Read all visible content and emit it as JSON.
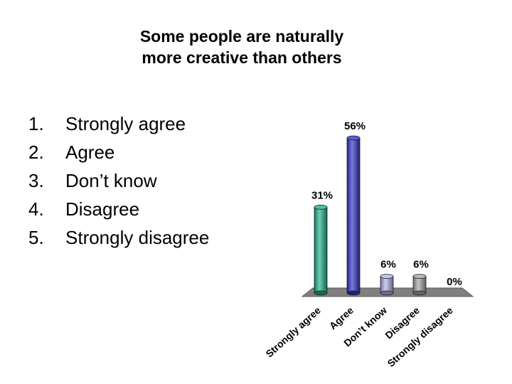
{
  "title": {
    "line1": "Some people are naturally",
    "line2": "more creative than others"
  },
  "options": [
    {
      "num": "1.",
      "text": "Strongly agree"
    },
    {
      "num": "2.",
      "text": "Agree"
    },
    {
      "num": "3.",
      "text": "Don’t know"
    },
    {
      "num": "4.",
      "text": "Disagree"
    },
    {
      "num": "5.",
      "text": "Strongly disagree"
    }
  ],
  "chart_data": {
    "type": "bar",
    "style": "3d-cylinder",
    "categories": [
      "Strongly agree",
      "Agree",
      "Don’t know",
      "Disagree",
      "Strongly disagree"
    ],
    "values": [
      31,
      56,
      6,
      6,
      0
    ],
    "data_labels": [
      "31%",
      "56%",
      "6%",
      "6%",
      "0%"
    ],
    "colors": [
      "#1fb58a",
      "#3333cc",
      "#b4b4ee",
      "#a6a6a6",
      "#8a8a8a"
    ],
    "floor_color": "#808080",
    "ylim": [
      0,
      56
    ],
    "grid": false,
    "legend": "none"
  }
}
